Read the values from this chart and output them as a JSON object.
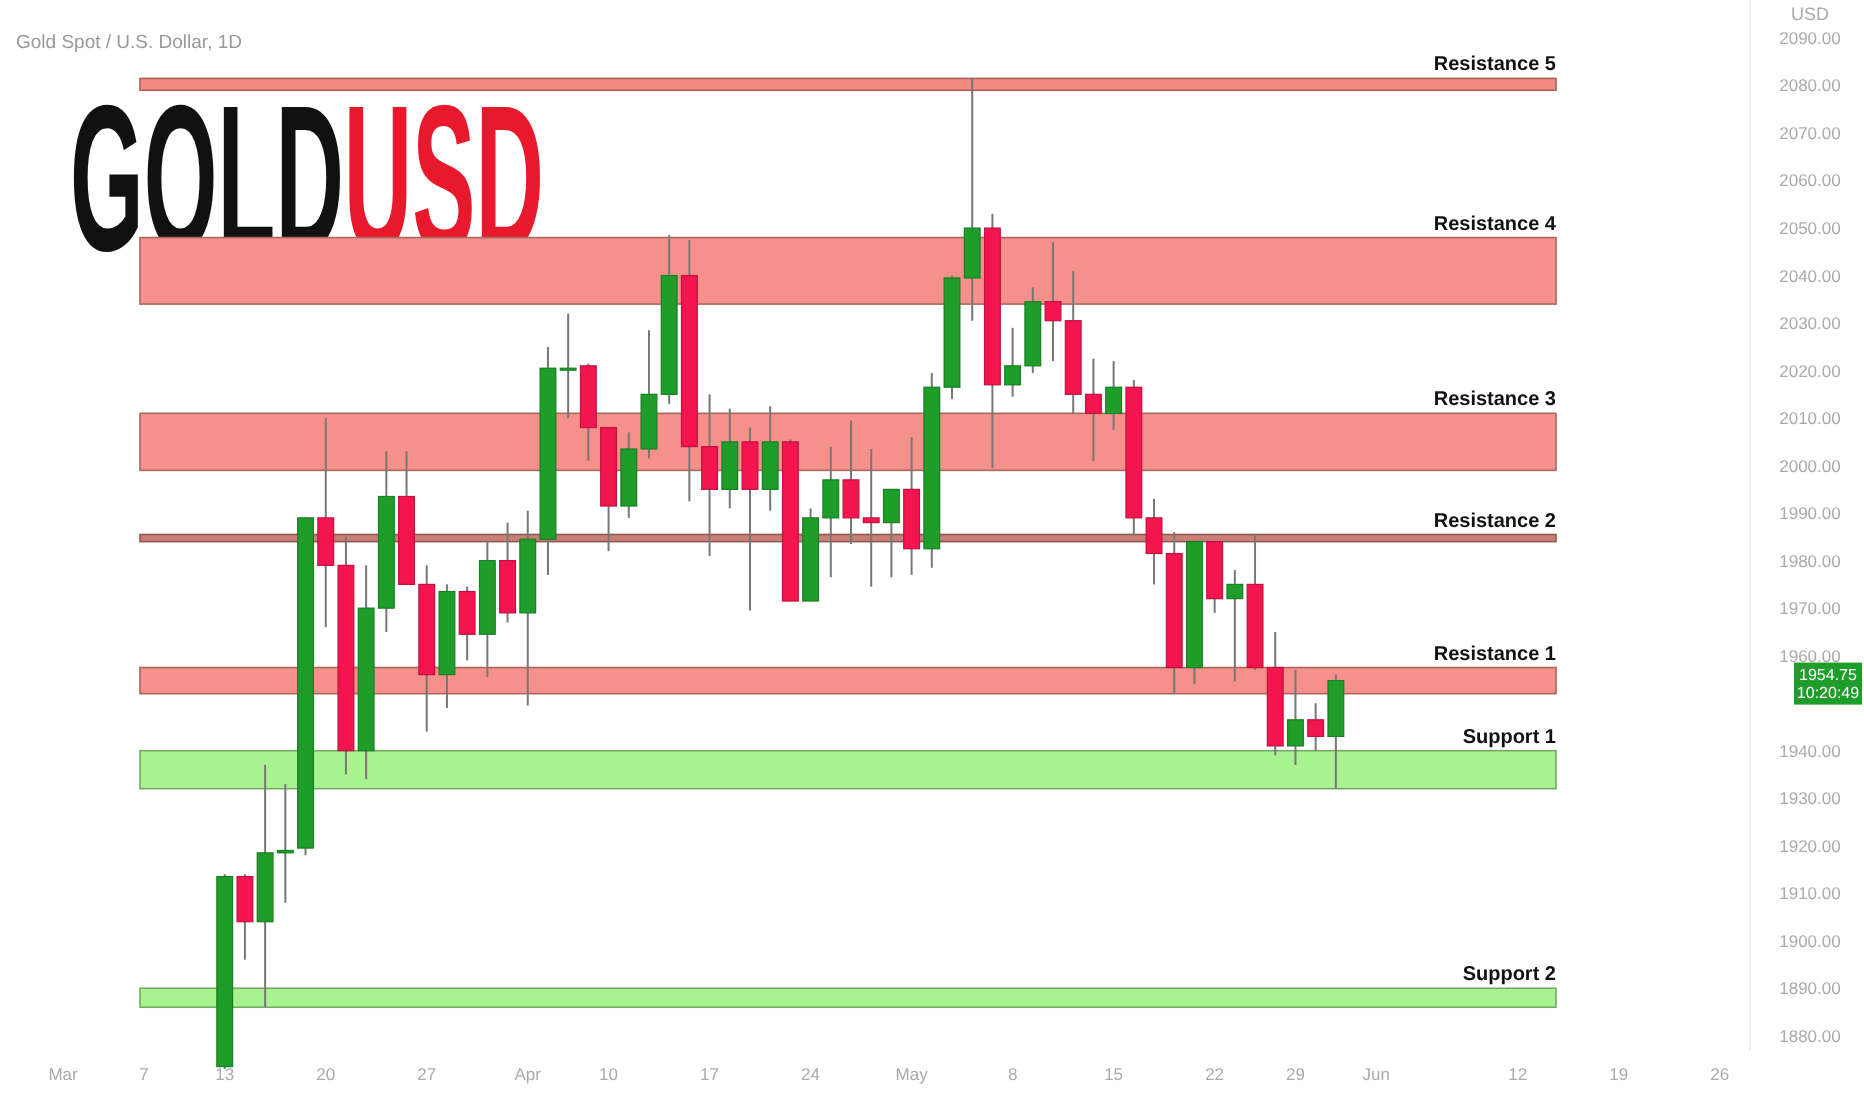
{
  "chart_data": {
    "type": "candlestick",
    "title": "Gold Spot / U.S. Dollar, 1D",
    "ylabel": "USD",
    "categories": [
      "Mar",
      null,
      null,
      null,
      "7",
      null,
      null,
      null,
      "13",
      null,
      null,
      null,
      null,
      "20",
      null,
      null,
      null,
      null,
      "27",
      null,
      null,
      null,
      null,
      "Apr",
      null,
      null,
      null,
      "10",
      null,
      null,
      null,
      null,
      "17",
      null,
      null,
      null,
      null,
      "24",
      null,
      null,
      null,
      null,
      "May",
      null,
      null,
      null,
      null,
      "8",
      null,
      null,
      null,
      null,
      "15",
      null,
      null,
      null,
      null,
      "22",
      null,
      null,
      null,
      "29",
      null,
      null,
      null,
      "Jun",
      null,
      null,
      null,
      null,
      null,
      null,
      "12",
      null,
      null,
      null,
      null,
      "19",
      null,
      null,
      null,
      null,
      "26",
      null
    ],
    "ohlc": [
      null,
      null,
      null,
      null,
      null,
      null,
      null,
      null,
      [
        1873.5,
        1914,
        1873,
        1913.5
      ],
      [
        1913.5,
        1914,
        1896,
        1904
      ],
      [
        1904,
        1937,
        1886,
        1918.5
      ],
      [
        1918.5,
        1933,
        1908,
        1919
      ],
      [
        1919.5,
        1989,
        1918,
        1989
      ],
      [
        1989,
        2010,
        1966,
        1979
      ],
      [
        1979,
        1985,
        1935,
        1940
      ],
      [
        1940,
        1979,
        1934,
        1970
      ],
      [
        1970,
        2003,
        1965,
        1993.5
      ],
      [
        1993.5,
        2003,
        1975,
        1975
      ],
      [
        1975,
        1979,
        1944,
        1956
      ],
      [
        1956,
        1975,
        1949,
        1973.5
      ],
      [
        1973.5,
        1974.5,
        1959,
        1964.5
      ],
      [
        1964.5,
        1984,
        1955.5,
        1980
      ],
      [
        1980,
        1988,
        1967,
        1969
      ],
      [
        1969,
        1990.5,
        1949.5,
        1984.5
      ],
      [
        1984.5,
        2025,
        1977,
        2020.5
      ],
      [
        2020.5,
        2032,
        2010,
        2020.5
      ],
      [
        2021,
        2021.5,
        2001,
        2008
      ],
      [
        2008,
        2008,
        1982,
        1991.5
      ],
      [
        1991.5,
        2007,
        1989,
        2003.5
      ],
      [
        2003.5,
        2028.5,
        2001.5,
        2015
      ],
      [
        2015,
        2048.5,
        2013,
        2040
      ],
      [
        2040,
        2047.5,
        1992.5,
        2004
      ],
      [
        2004,
        2015,
        1981,
        1995
      ],
      [
        1995,
        2012,
        1991,
        2005
      ],
      [
        2005,
        2008,
        1969.5,
        1995
      ],
      [
        1995,
        2012.5,
        1990.5,
        2005
      ],
      [
        2005,
        2005.5,
        1971.5,
        1971.5
      ],
      [
        1971.5,
        1991,
        1971.5,
        1989
      ],
      [
        1989,
        2004,
        1976.5,
        1997
      ],
      [
        1997,
        2009.5,
        1983.5,
        1989
      ],
      [
        1989,
        2003.5,
        1974.5,
        1988
      ],
      [
        1988,
        1995,
        1976.5,
        1995
      ],
      [
        1995,
        2006,
        1977,
        1982.5
      ],
      [
        1982.5,
        2019.5,
        1978.5,
        2016.5
      ],
      [
        2016.5,
        2040,
        2014,
        2039.5
      ],
      [
        2039.5,
        2081.5,
        2030.5,
        2050
      ],
      [
        2050,
        2053,
        1999.5,
        2017
      ],
      [
        2017,
        2029,
        2014.5,
        2021
      ],
      [
        2021,
        2037.5,
        2019.5,
        2034.5
      ],
      [
        2034.5,
        2047,
        2022,
        2030.5
      ],
      [
        2030.5,
        2041,
        2011,
        2015
      ],
      [
        2015,
        2022.5,
        2001,
        2011
      ],
      [
        2011,
        2022,
        2007.5,
        2016.5
      ],
      [
        2016.5,
        2018,
        1985.5,
        1989
      ],
      [
        1989,
        1993,
        1975,
        1981.5
      ],
      [
        1981.5,
        1986,
        1952,
        1957.5
      ],
      [
        1957.5,
        1984,
        1954,
        1984
      ],
      [
        1984,
        1984,
        1969,
        1972
      ],
      [
        1972,
        1978,
        1954.5,
        1975
      ],
      [
        1975,
        1985.5,
        1957,
        1957.5
      ],
      [
        1957.5,
        1965,
        1939,
        1941
      ],
      [
        1941,
        1957,
        1937,
        1946.5
      ],
      [
        1946.5,
        1950,
        1940,
        1943
      ],
      [
        1943,
        1956,
        1932,
        1954.75
      ],
      null,
      null,
      null,
      null,
      null,
      null,
      null,
      null,
      null,
      null,
      null,
      null,
      null,
      null,
      null,
      null,
      null,
      null,
      null,
      null
    ],
    "colors": [
      null,
      null,
      null,
      null,
      null,
      null,
      null,
      null,
      "#1f9d2b",
      "#f2154f",
      "#1f9d2b",
      "#1f9d2b",
      "#1f9d2b",
      "#f2154f",
      "#f2154f",
      "#1f9d2b",
      "#1f9d2b",
      "#f2154f",
      "#f2154f",
      "#1f9d2b",
      "#f2154f",
      "#1f9d2b",
      "#f2154f",
      "#1f9d2b",
      "#1f9d2b",
      "#1f9d2b",
      "#f2154f",
      "#f2154f",
      "#1f9d2b",
      "#1f9d2b",
      "#1f9d2b",
      "#f2154f",
      "#f2154f",
      "#1f9d2b",
      "#f2154f",
      "#1f9d2b",
      "#f2154f",
      "#1f9d2b",
      "#1f9d2b",
      "#f2154f",
      "#f2154f",
      "#1f9d2b",
      "#f2154f",
      "#1f9d2b",
      "#1f9d2b",
      "#1f9d2b",
      "#f2154f",
      "#1f9d2b",
      "#1f9d2b",
      "#f2154f",
      "#f2154f",
      "#f2154f",
      "#1f9d2b",
      "#f2154f",
      "#f2154f",
      "#f2154f",
      "#1f9d2b",
      "#f2154f",
      "#1f9d2b",
      "#f2154f",
      "#f2154f",
      "#1f9d2b",
      "#f2154f",
      "#1f9d2b",
      null,
      null,
      null,
      null,
      null,
      null,
      null,
      null,
      null,
      null,
      null,
      null,
      null,
      null,
      null,
      null,
      null,
      null,
      null,
      null
    ],
    "ylim": [
      1877,
      2098
    ],
    "yticks": [
      {
        "value": 1880,
        "label": "1880.00"
      },
      {
        "value": 1890,
        "label": "1890.00"
      },
      {
        "value": 1900,
        "label": "1900.00"
      },
      {
        "value": 1910,
        "label": "1910.00"
      },
      {
        "value": 1920,
        "label": "1920.00"
      },
      {
        "value": 1930,
        "label": "1930.00"
      },
      {
        "value": 1940,
        "label": "1940.00"
      },
      {
        "value": 1960,
        "label": "1960.00"
      },
      {
        "value": 1970,
        "label": "1970.00"
      },
      {
        "value": 1980,
        "label": "1980.00"
      },
      {
        "value": 1990,
        "label": "1990.00"
      },
      {
        "value": 2000,
        "label": "2000.00"
      },
      {
        "value": 2010,
        "label": "2010.00"
      },
      {
        "value": 2020,
        "label": "2020.00"
      },
      {
        "value": 2030,
        "label": "2030.00"
      },
      {
        "value": 2040,
        "label": "2040.00"
      },
      {
        "value": 2050,
        "label": "2050.00"
      },
      {
        "value": 2060,
        "label": "2060.00"
      },
      {
        "value": 2070,
        "label": "2070.00"
      },
      {
        "value": 2080,
        "label": "2080.00"
      },
      {
        "value": 2090,
        "label": "2090.00"
      }
    ],
    "bands": [
      {
        "axis": "y",
        "from": 2079,
        "to": 2081.5,
        "label": "Resistance 5",
        "color": "#f28b82"
      },
      {
        "axis": "y",
        "from": 2034,
        "to": 2048,
        "label": "Resistance 4",
        "color": "#f5918a"
      },
      {
        "axis": "y",
        "from": 1999,
        "to": 2011,
        "label": "Resistance 3",
        "color": "#f5918a"
      },
      {
        "axis": "y",
        "from": 1984,
        "to": 1985.5,
        "label": "Resistance 2",
        "color": "#c98079"
      },
      {
        "axis": "y",
        "from": 1952,
        "to": 1957.5,
        "label": "Resistance 1",
        "color": "#f5918a"
      },
      {
        "axis": "y",
        "from": 1932,
        "to": 1940,
        "label": "Support 1",
        "color": "#a8f290"
      },
      {
        "axis": "y",
        "from": 1886,
        "to": 1890,
        "label": "Support 2",
        "color": "#a8f290"
      }
    ],
    "subtitle": "GOLDUSD",
    "annotations": [
      "1954.75",
      "10:20:49"
    ]
  }
}
